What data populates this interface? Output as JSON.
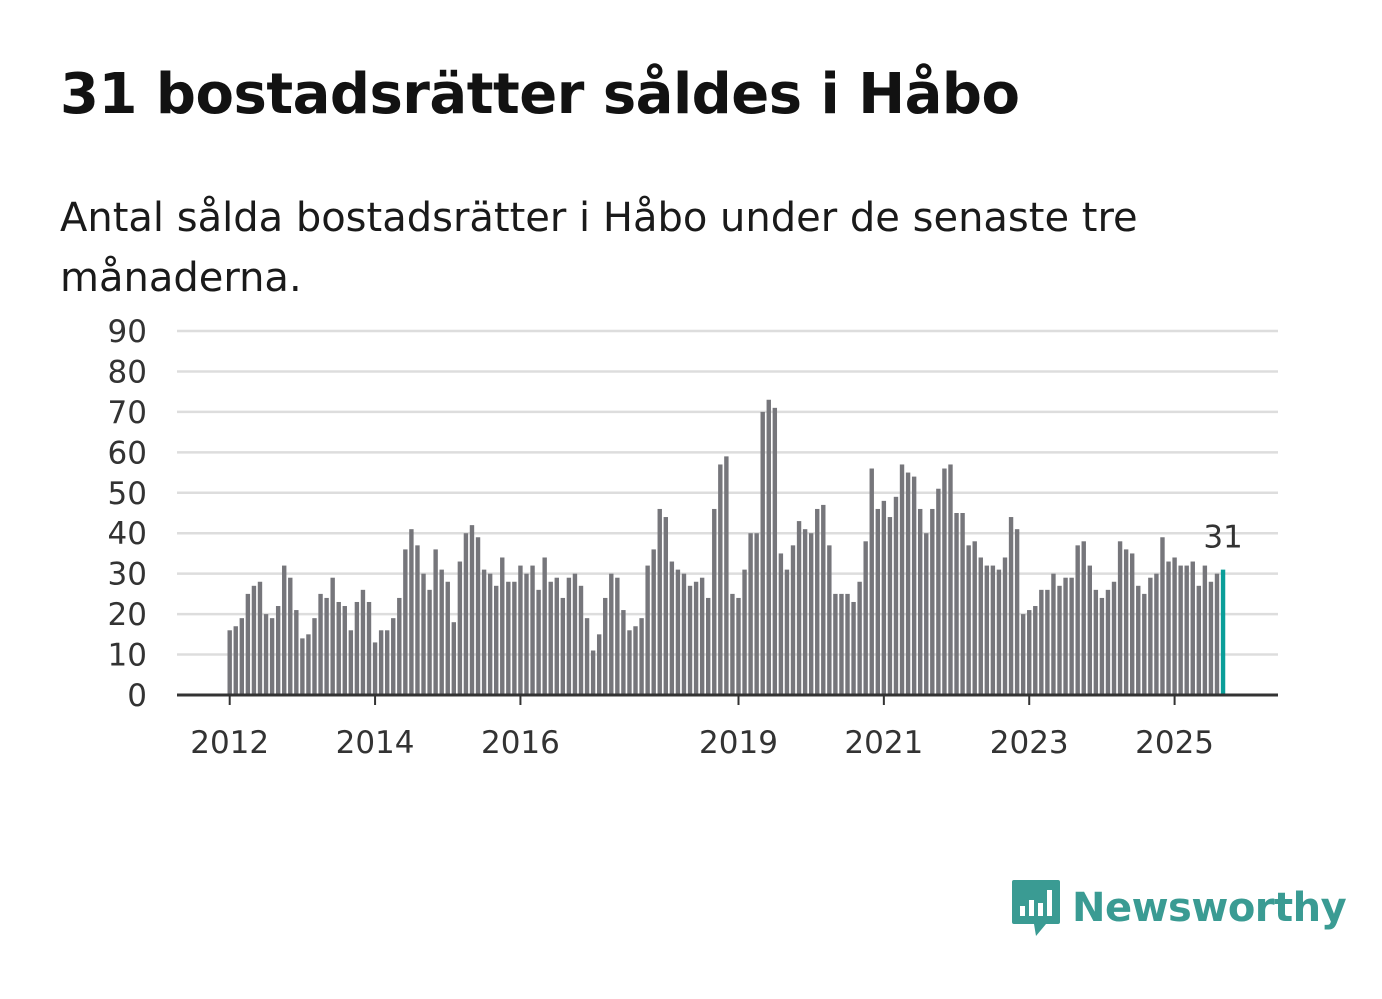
{
  "title": "31 bostadsrätter såldes i Håbo",
  "subtitle": "Antal sålda bostadsrätter i Håbo under de senaste tre månaderna.",
  "brand": {
    "name": "Newsworthy",
    "color": "#3a9b93",
    "icon": "newsworthy-logo-icon"
  },
  "colors": {
    "bar": "#76767b",
    "highlight": "#0a9e99",
    "grid": "#dddddd",
    "axis": "#333333"
  },
  "chart_data": {
    "type": "bar",
    "title": "31 bostadsrätter såldes i Håbo",
    "subtitle": "Antal sålda bostadsrätter i Håbo under de senaste tre månaderna.",
    "xlabel": "",
    "ylabel": "",
    "ylim": [
      0,
      90
    ],
    "yticks": [
      "0",
      "10",
      "20",
      "30",
      "40",
      "50",
      "60",
      "70",
      "80",
      "90"
    ],
    "xticks": [
      {
        "label": "2012",
        "index": 0
      },
      {
        "label": "2014",
        "index": 24
      },
      {
        "label": "2016",
        "index": 48
      },
      {
        "label": "2019",
        "index": 84
      },
      {
        "label": "2021",
        "index": 108
      },
      {
        "label": "2023",
        "index": 132
      },
      {
        "label": "2025",
        "index": 156
      }
    ],
    "grid": true,
    "start": "2012-01",
    "highlight_label": "31",
    "values": [
      16,
      17,
      19,
      25,
      27,
      28,
      20,
      19,
      22,
      32,
      29,
      21,
      14,
      15,
      19,
      25,
      24,
      29,
      23,
      22,
      16,
      23,
      26,
      23,
      13,
      16,
      16,
      19,
      24,
      36,
      41,
      37,
      30,
      26,
      36,
      31,
      28,
      18,
      33,
      40,
      42,
      39,
      31,
      30,
      27,
      34,
      28,
      28,
      32,
      30,
      32,
      26,
      34,
      28,
      29,
      24,
      29,
      30,
      27,
      19,
      11,
      15,
      24,
      30,
      29,
      21,
      16,
      17,
      19,
      32,
      36,
      46,
      44,
      33,
      31,
      30,
      27,
      28,
      29,
      24,
      46,
      57,
      59,
      25,
      24,
      31,
      40,
      40,
      70,
      73,
      71,
      35,
      31,
      37,
      43,
      41,
      40,
      46,
      47,
      37,
      25,
      25,
      25,
      23,
      28,
      38,
      56,
      46,
      48,
      44,
      49,
      57,
      55,
      54,
      46,
      40,
      46,
      51,
      56,
      57,
      45,
      45,
      37,
      38,
      34,
      32,
      32,
      31,
      34,
      44,
      41,
      20,
      21,
      22,
      26,
      26,
      30,
      27,
      29,
      29,
      37,
      38,
      32,
      26,
      24,
      26,
      28,
      38,
      36,
      35,
      27,
      25,
      29,
      30,
      39,
      33,
      34,
      32,
      32,
      33,
      27,
      32,
      28,
      30,
      31
    ]
  }
}
